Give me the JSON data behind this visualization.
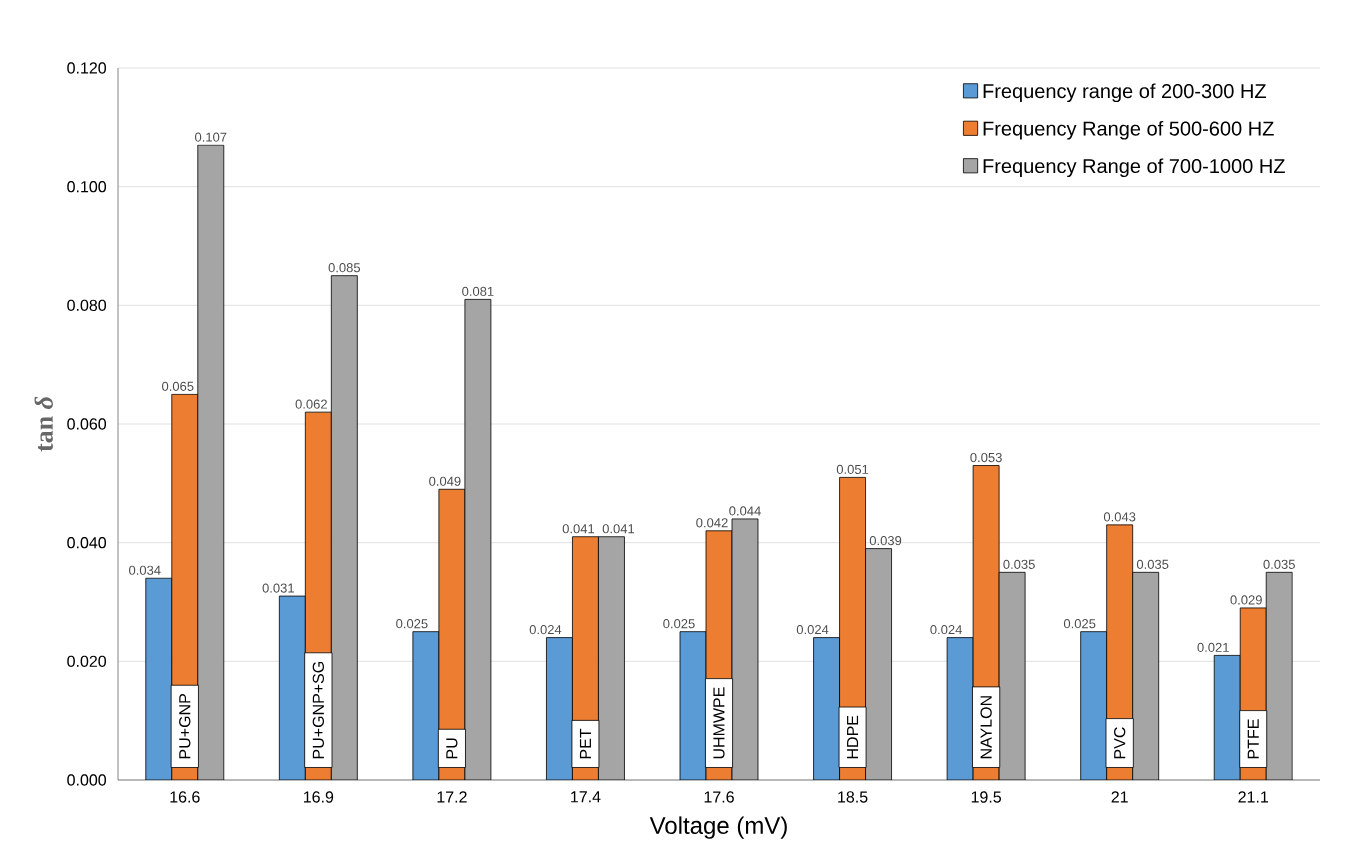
{
  "chart_data": {
    "type": "bar",
    "xlabel": "Voltage (mV)",
    "ylabel": "tan *δ*",
    "categories": [
      "16.6",
      "16.9",
      "17.2",
      "17.4",
      "17.6",
      "18.5",
      "19.5",
      "21",
      "21.1"
    ],
    "series": [
      {
        "name": "Frequency range of 200-300 HZ",
        "color": "#5b9bd5",
        "values": [
          0.034,
          0.031,
          0.025,
          0.024,
          0.025,
          0.024,
          0.024,
          0.025,
          0.021
        ]
      },
      {
        "name": "Frequency Range of 500-600 HZ",
        "color": "#ed7d31",
        "values": [
          0.065,
          0.062,
          0.049,
          0.041,
          0.042,
          0.051,
          0.053,
          0.043,
          0.029
        ]
      },
      {
        "name": "Frequency Range of 700-1000 HZ",
        "color": "#a5a5a5",
        "values": [
          0.107,
          0.085,
          0.081,
          0.041,
          0.044,
          0.039,
          0.035,
          0.035,
          0.035
        ]
      }
    ],
    "ylim": [
      0,
      0.12
    ],
    "yticks": [
      {
        "value": 0,
        "label": "0.000"
      },
      {
        "value": 0.02,
        "label": "0.020"
      },
      {
        "value": 0.04,
        "label": "0.040"
      },
      {
        "value": 0.06,
        "label": "0.060"
      },
      {
        "value": 0.08,
        "label": "0.080"
      },
      {
        "value": 0.1,
        "label": "0.100"
      },
      {
        "value": 0.12,
        "label": "0.120"
      }
    ],
    "grid": "y",
    "legend": "top right",
    "data_labels": true,
    "annotations": [
      "PU+GNP",
      "PU+GNP+SG",
      "PU",
      "PET",
      "UHMWPE",
      "HDPE",
      "NAYLON",
      "PVC",
      "PTFE"
    ]
  }
}
